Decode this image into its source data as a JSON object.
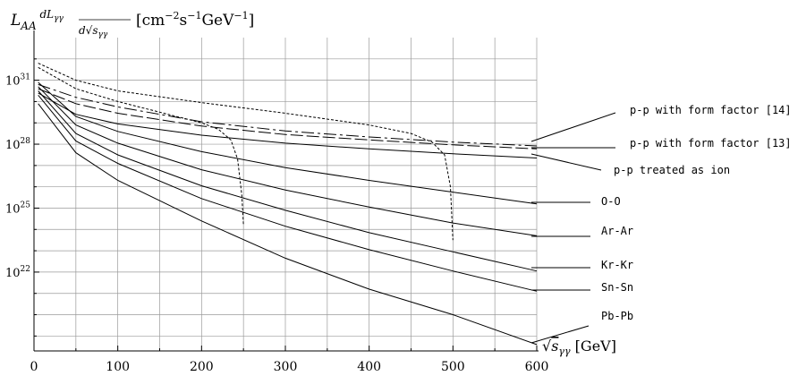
{
  "chart_data": {
    "type": "line",
    "ylabel": "L_AA dL_γγ/d√s_γγ [cm⁻²s⁻¹GeV⁻¹]",
    "xlabel": "√s_γγ [GeV]",
    "y_scale": "log",
    "grid": true,
    "xlim": [
      0,
      600
    ],
    "ylim_log10": [
      18.3,
      33
    ],
    "x_ticks": [
      "0",
      "100",
      "200",
      "300",
      "400",
      "500",
      "600"
    ],
    "y_ticks": [
      {
        "base": "10",
        "exp": "31"
      },
      {
        "base": "10",
        "exp": "28"
      },
      {
        "base": "10",
        "exp": "25"
      },
      {
        "base": "10",
        "exp": "22"
      }
    ],
    "series": [
      {
        "name": "p-p with form factor [14]",
        "style": "dashdot",
        "x": [
          5,
          50,
          100,
          200,
          300,
          400,
          500,
          600
        ],
        "log10_y": [
          30.8,
          30.2,
          29.75,
          29.05,
          28.62,
          28.34,
          28.1,
          27.92
        ]
      },
      {
        "name": "p-p with form factor [13]",
        "style": "longdash",
        "x": [
          5,
          50,
          100,
          200,
          300,
          400,
          500,
          600
        ],
        "log10_y": [
          30.6,
          29.9,
          29.45,
          28.85,
          28.45,
          28.2,
          27.97,
          27.78
        ]
      },
      {
        "name": "p-p treated as ion",
        "style": "solid",
        "x": [
          5,
          50,
          100,
          200,
          300,
          400,
          500,
          600
        ],
        "log10_y": [
          30.4,
          29.4,
          28.95,
          28.42,
          28.05,
          27.78,
          27.55,
          27.35
        ]
      },
      {
        "name": "O-O",
        "style": "solid",
        "x": [
          5,
          50,
          100,
          200,
          300,
          400,
          500,
          600
        ],
        "log10_y": [
          30.9,
          29.3,
          28.6,
          27.65,
          26.9,
          26.3,
          25.75,
          25.2
        ]
      },
      {
        "name": "Ar-Ar",
        "style": "solid",
        "x": [
          5,
          50,
          100,
          200,
          300,
          400,
          500,
          600
        ],
        "log10_y": [
          30.7,
          28.9,
          28.05,
          26.8,
          25.85,
          25.05,
          24.3,
          23.7
        ]
      },
      {
        "name": "Kr-Kr",
        "style": "solid",
        "x": [
          5,
          50,
          100,
          200,
          300,
          400,
          500,
          600
        ],
        "log10_y": [
          30.5,
          28.5,
          27.5,
          26.05,
          24.9,
          23.85,
          22.95,
          22.05
        ]
      },
      {
        "name": "Sn-Sn",
        "style": "solid",
        "x": [
          5,
          50,
          100,
          200,
          300,
          400,
          500,
          600
        ],
        "log10_y": [
          30.3,
          28.15,
          27.1,
          25.45,
          24.15,
          23.05,
          22.05,
          21.1
        ]
      },
      {
        "name": "Pb-Pb",
        "style": "solid",
        "x": [
          5,
          50,
          100,
          200,
          300,
          400,
          500,
          600
        ],
        "log10_y": [
          29.9,
          27.6,
          26.3,
          24.4,
          22.65,
          21.2,
          20.0,
          18.6
        ]
      },
      {
        "name": "",
        "style": "dashed",
        "x": [
          5,
          50,
          100,
          150,
          200,
          220,
          235,
          243,
          248,
          250
        ],
        "log10_y": [
          31.6,
          30.6,
          30.0,
          29.5,
          29.0,
          28.7,
          28.2,
          27.3,
          25.6,
          24.2
        ]
      },
      {
        "name": "",
        "style": "dashed",
        "x": [
          5,
          50,
          100,
          200,
          300,
          400,
          450,
          475,
          490,
          497,
          500
        ],
        "log10_y": [
          31.8,
          31.0,
          30.5,
          29.95,
          29.45,
          28.9,
          28.5,
          28.1,
          27.5,
          26.0,
          23.5
        ]
      }
    ]
  }
}
